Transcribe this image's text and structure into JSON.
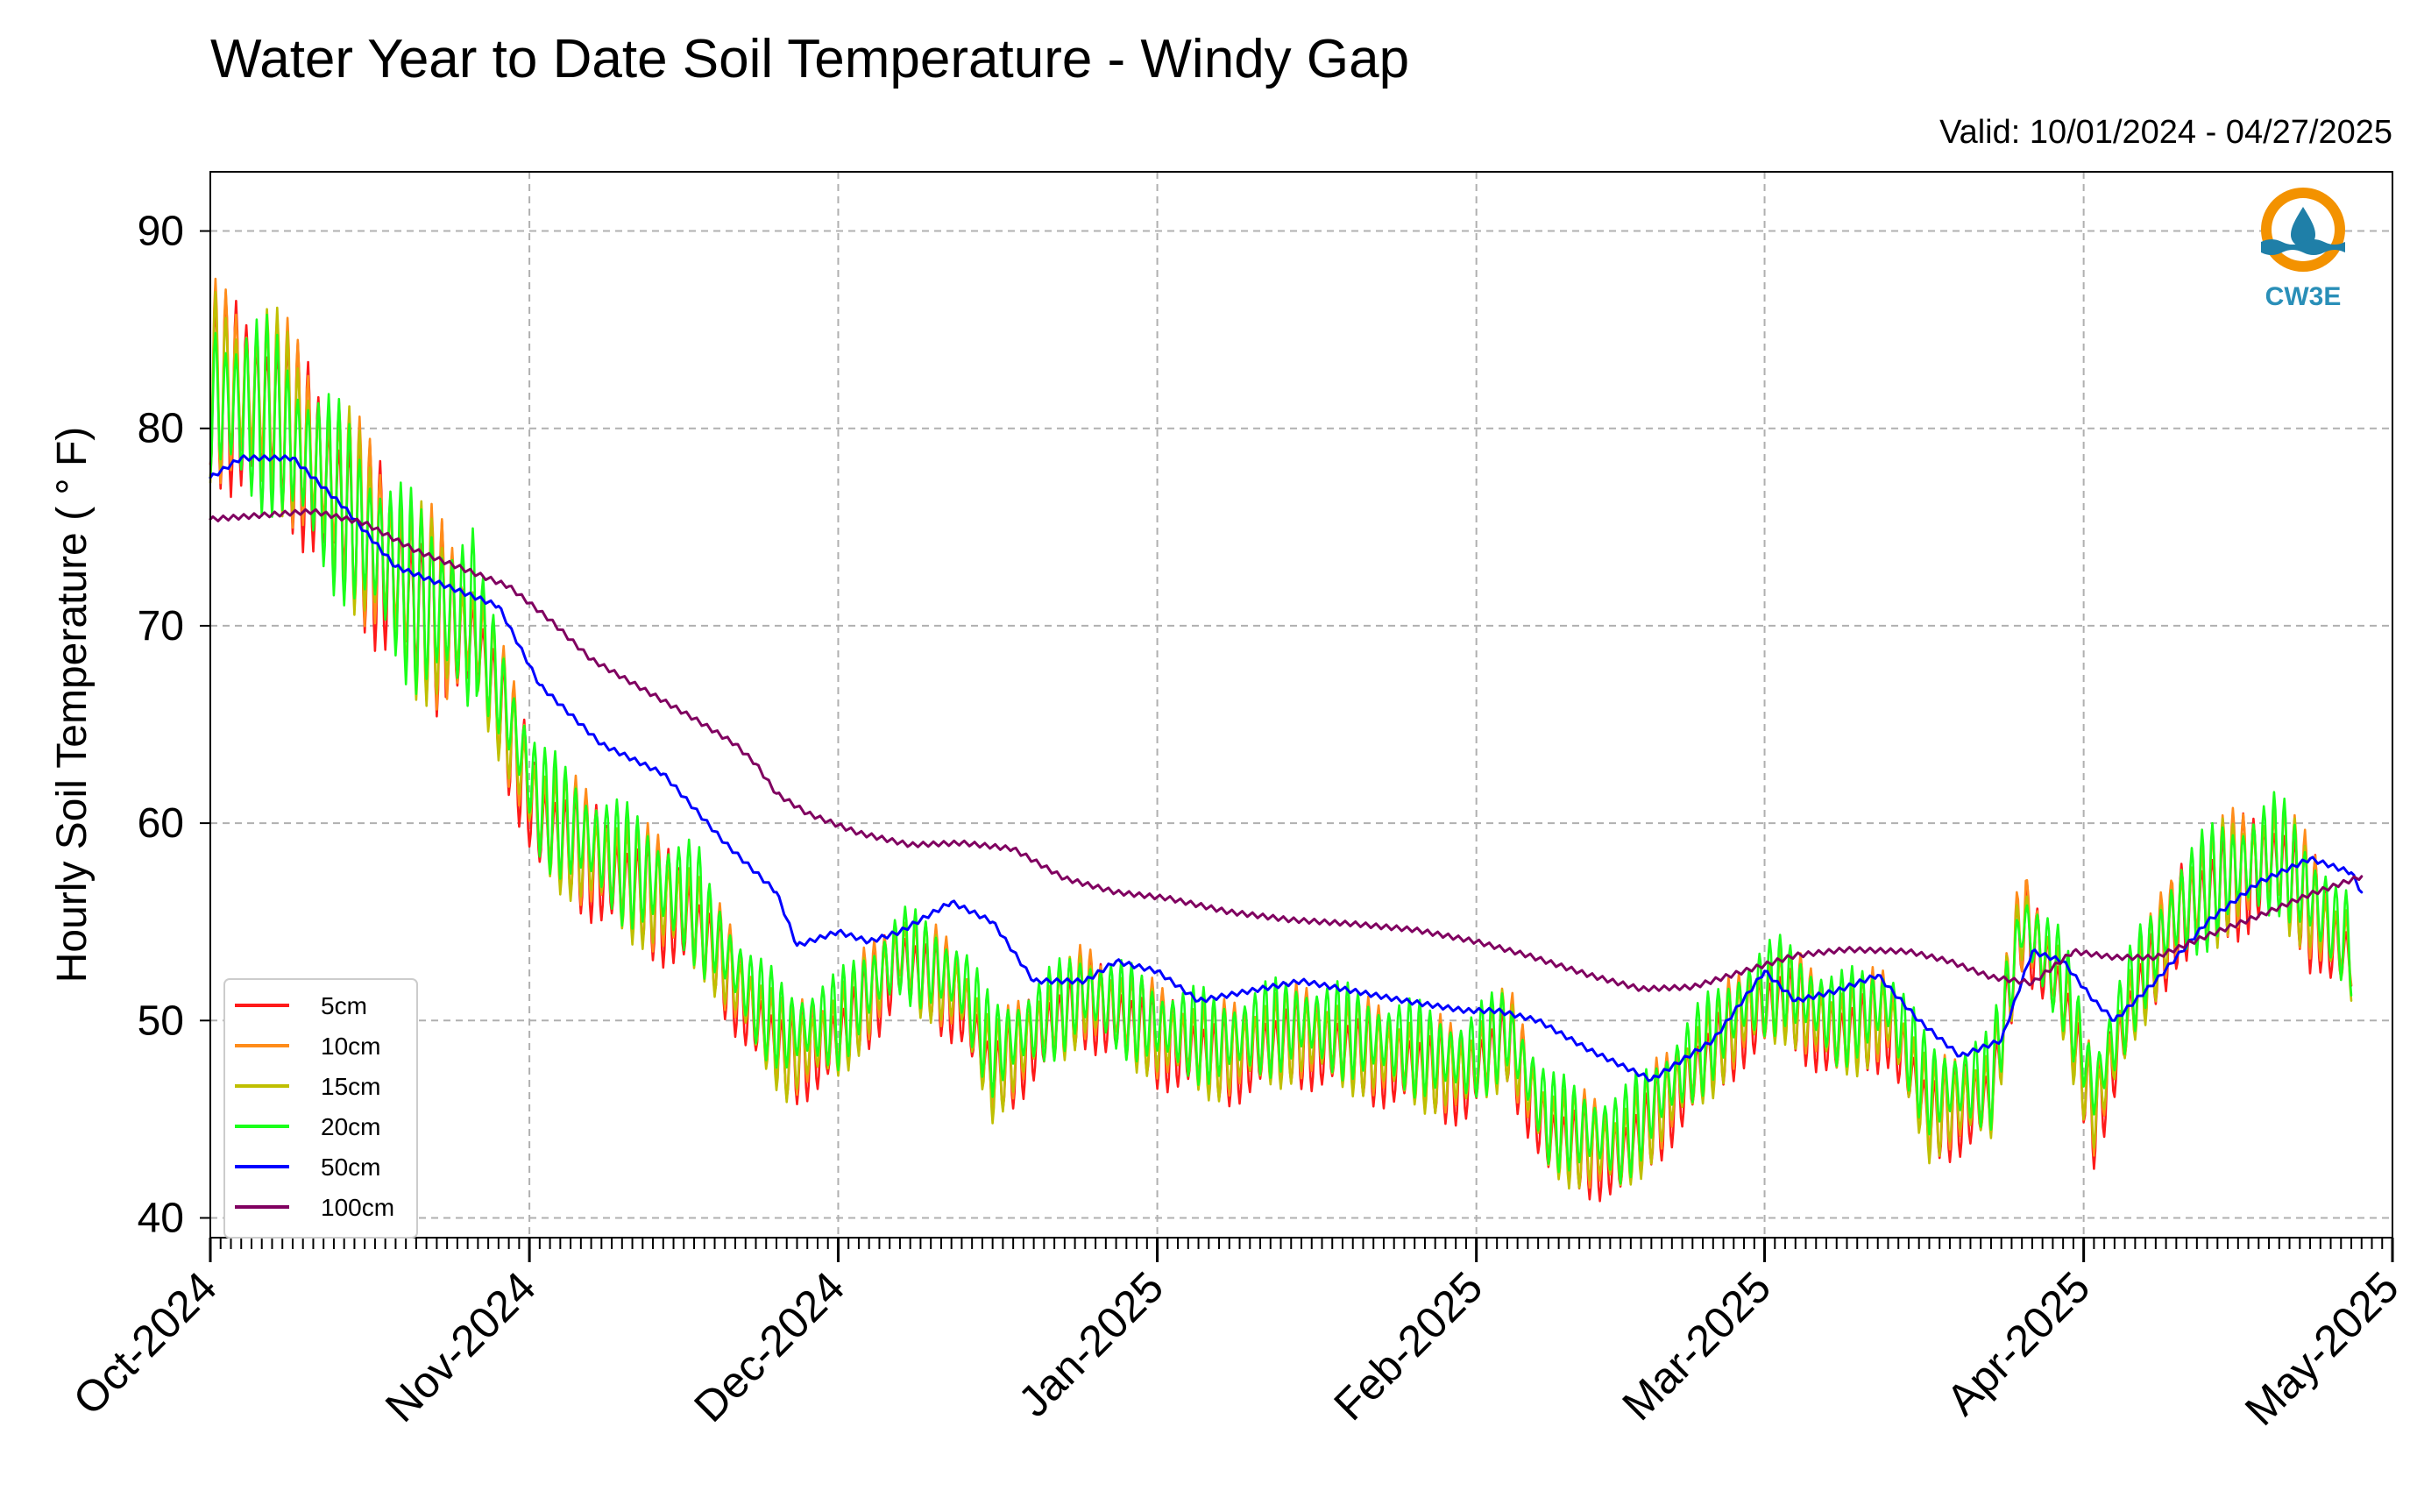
{
  "chart_data": {
    "type": "line",
    "title": "Water Year to Date Soil Temperature - Windy Gap",
    "subtitle": "Valid: 10/01/2024 - 04/27/2025",
    "ylabel": "Hourly Soil Temperature ( ° F)",
    "xlabel": "",
    "ylim": [
      39,
      93
    ],
    "xlim": [
      "2024-10-01",
      "2025-05-01"
    ],
    "yticks": [
      40,
      50,
      60,
      70,
      80,
      90
    ],
    "xticks": [
      {
        "date": "2024-10-01",
        "label": "Oct-2024"
      },
      {
        "date": "2024-11-01",
        "label": "Nov-2024"
      },
      {
        "date": "2024-12-01",
        "label": "Dec-2024"
      },
      {
        "date": "2025-01-01",
        "label": "Jan-2025"
      },
      {
        "date": "2025-02-01",
        "label": "Feb-2025"
      },
      {
        "date": "2025-03-01",
        "label": "Mar-2025"
      },
      {
        "date": "2025-04-01",
        "label": "Apr-2025"
      },
      {
        "date": "2025-05-01",
        "label": "May-2025"
      }
    ],
    "grid": true,
    "legend_position": "lower-left",
    "series": [
      {
        "name": "5cm",
        "color": "#ff1a1a",
        "diurnal": true,
        "points": [
          [
            "2024-10-01",
            82
          ],
          [
            "2024-10-07",
            81
          ],
          [
            "2024-10-14",
            76
          ],
          [
            "2024-10-21",
            71
          ],
          [
            "2024-10-27",
            69
          ],
          [
            "2024-11-02",
            60
          ],
          [
            "2024-11-10",
            57
          ],
          [
            "2024-11-17",
            55
          ],
          [
            "2024-11-23",
            50
          ],
          [
            "2024-11-26",
            48
          ],
          [
            "2024-12-01",
            49
          ],
          [
            "2024-12-07",
            53
          ],
          [
            "2024-12-13",
            51
          ],
          [
            "2024-12-16",
            47
          ],
          [
            "2024-12-20",
            49
          ],
          [
            "2024-12-25",
            51
          ],
          [
            "2025-01-01",
            49
          ],
          [
            "2025-01-07",
            48
          ],
          [
            "2025-01-15",
            49
          ],
          [
            "2025-01-23",
            48
          ],
          [
            "2025-01-31",
            47
          ],
          [
            "2025-02-04",
            49
          ],
          [
            "2025-02-08",
            44
          ],
          [
            "2025-02-15",
            43
          ],
          [
            "2025-02-20",
            46
          ],
          [
            "2025-02-27",
            50
          ],
          [
            "2025-03-03",
            51
          ],
          [
            "2025-03-08",
            49
          ],
          [
            "2025-03-13",
            50
          ],
          [
            "2025-03-17",
            45
          ],
          [
            "2025-03-23",
            46
          ],
          [
            "2025-03-26",
            55
          ],
          [
            "2025-03-30",
            51
          ],
          [
            "2025-04-02",
            45
          ],
          [
            "2025-04-06",
            51
          ],
          [
            "2025-04-10",
            55
          ],
          [
            "2025-04-15",
            57
          ],
          [
            "2025-04-20",
            58
          ],
          [
            "2025-04-25",
            54
          ],
          [
            "2025-04-27",
            53
          ]
        ]
      },
      {
        "name": "10cm",
        "color": "#ff8c1a",
        "diurnal": true,
        "points": [
          [
            "2024-10-01",
            82.5
          ],
          [
            "2024-10-07",
            81.5
          ],
          [
            "2024-10-14",
            76.5
          ],
          [
            "2024-10-21",
            71.5
          ],
          [
            "2024-10-27",
            69.5
          ],
          [
            "2024-11-02",
            60.5
          ],
          [
            "2024-11-10",
            57.5
          ],
          [
            "2024-11-17",
            55.5
          ],
          [
            "2024-11-23",
            50.5
          ],
          [
            "2024-11-26",
            48.5
          ],
          [
            "2024-12-01",
            49.5
          ],
          [
            "2024-12-07",
            53.5
          ],
          [
            "2024-12-13",
            51.5
          ],
          [
            "2024-12-16",
            47.5
          ],
          [
            "2024-12-20",
            49.5
          ],
          [
            "2024-12-25",
            51.5
          ],
          [
            "2025-01-01",
            49.5
          ],
          [
            "2025-01-07",
            48.5
          ],
          [
            "2025-01-15",
            49.5
          ],
          [
            "2025-01-23",
            48.5
          ],
          [
            "2025-01-31",
            47.5
          ],
          [
            "2025-02-04",
            49.5
          ],
          [
            "2025-02-08",
            44.5
          ],
          [
            "2025-02-15",
            43.5
          ],
          [
            "2025-02-20",
            46.5
          ],
          [
            "2025-02-27",
            50.5
          ],
          [
            "2025-03-03",
            51.5
          ],
          [
            "2025-03-08",
            49.5
          ],
          [
            "2025-03-13",
            50.5
          ],
          [
            "2025-03-17",
            45.5
          ],
          [
            "2025-03-23",
            46.5
          ],
          [
            "2025-03-26",
            55.5
          ],
          [
            "2025-03-30",
            51.5
          ],
          [
            "2025-04-02",
            45.5
          ],
          [
            "2025-04-06",
            51.5
          ],
          [
            "2025-04-10",
            55.5
          ],
          [
            "2025-04-15",
            57.5
          ],
          [
            "2025-04-20",
            58.5
          ],
          [
            "2025-04-25",
            54.5
          ],
          [
            "2025-04-27",
            53.5
          ]
        ]
      },
      {
        "name": "15cm",
        "color": "#bfbf00",
        "diurnal": true,
        "points": [
          [
            "2024-10-01",
            82.3
          ],
          [
            "2024-10-07",
            81.3
          ],
          [
            "2024-10-14",
            76.3
          ],
          [
            "2024-10-21",
            71.3
          ],
          [
            "2024-10-27",
            69.3
          ],
          [
            "2024-11-02",
            60.3
          ],
          [
            "2024-11-10",
            57.3
          ],
          [
            "2024-11-17",
            55.3
          ],
          [
            "2024-11-23",
            50.3
          ],
          [
            "2024-11-26",
            48.3
          ],
          [
            "2024-12-01",
            49.3
          ],
          [
            "2024-12-07",
            53.3
          ],
          [
            "2024-12-13",
            51.3
          ],
          [
            "2024-12-16",
            47.3
          ],
          [
            "2024-12-20",
            49.3
          ],
          [
            "2024-12-25",
            51.3
          ],
          [
            "2025-01-01",
            49.3
          ],
          [
            "2025-01-07",
            48.3
          ],
          [
            "2025-01-15",
            49.3
          ],
          [
            "2025-01-23",
            48.3
          ],
          [
            "2025-01-31",
            47.3
          ],
          [
            "2025-02-04",
            49.3
          ],
          [
            "2025-02-08",
            44.3
          ],
          [
            "2025-02-15",
            43.3
          ],
          [
            "2025-02-20",
            46.3
          ],
          [
            "2025-02-27",
            50.3
          ],
          [
            "2025-03-03",
            51.3
          ],
          [
            "2025-03-08",
            49.3
          ],
          [
            "2025-03-13",
            50.3
          ],
          [
            "2025-03-17",
            45.3
          ],
          [
            "2025-03-23",
            46.3
          ],
          [
            "2025-03-26",
            55.3
          ],
          [
            "2025-03-30",
            51.3
          ],
          [
            "2025-04-02",
            45.3
          ],
          [
            "2025-04-06",
            51.3
          ],
          [
            "2025-04-10",
            55.3
          ],
          [
            "2025-04-15",
            57.3
          ],
          [
            "2025-04-20",
            58.3
          ],
          [
            "2025-04-25",
            54.3
          ],
          [
            "2025-04-27",
            53.3
          ]
        ]
      },
      {
        "name": "20cm",
        "color": "#1aff1a",
        "diurnal": true,
        "points": [
          [
            "2024-10-01",
            81.5
          ],
          [
            "2024-10-07",
            80.5
          ],
          [
            "2024-10-14",
            76
          ],
          [
            "2024-10-21",
            71.5
          ],
          [
            "2024-10-27",
            70
          ],
          [
            "2024-11-02",
            61
          ],
          [
            "2024-11-10",
            58
          ],
          [
            "2024-11-17",
            56
          ],
          [
            "2024-11-23",
            51
          ],
          [
            "2024-11-26",
            49.5
          ],
          [
            "2024-12-01",
            50
          ],
          [
            "2024-12-07",
            53.5
          ],
          [
            "2024-12-13",
            52
          ],
          [
            "2024-12-16",
            48.5
          ],
          [
            "2024-12-20",
            49.8
          ],
          [
            "2024-12-25",
            51.5
          ],
          [
            "2025-01-01",
            49.8
          ],
          [
            "2025-01-07",
            49
          ],
          [
            "2025-01-15",
            50
          ],
          [
            "2025-01-23",
            49
          ],
          [
            "2025-01-31",
            48
          ],
          [
            "2025-02-04",
            49.5
          ],
          [
            "2025-02-08",
            45
          ],
          [
            "2025-02-15",
            44
          ],
          [
            "2025-02-20",
            47
          ],
          [
            "2025-02-27",
            51
          ],
          [
            "2025-03-03",
            52
          ],
          [
            "2025-03-08",
            50
          ],
          [
            "2025-03-13",
            51
          ],
          [
            "2025-03-17",
            46.5
          ],
          [
            "2025-03-23",
            47
          ],
          [
            "2025-03-26",
            55
          ],
          [
            "2025-03-30",
            52
          ],
          [
            "2025-04-02",
            46.5
          ],
          [
            "2025-04-06",
            52
          ],
          [
            "2025-04-10",
            55.5
          ],
          [
            "2025-04-15",
            57.5
          ],
          [
            "2025-04-20",
            58.5
          ],
          [
            "2025-04-25",
            55
          ],
          [
            "2025-04-27",
            53.8
          ]
        ]
      },
      {
        "name": "50cm",
        "color": "#0000ff",
        "diurnal": false,
        "points": [
          [
            "2024-10-01",
            77.5
          ],
          [
            "2024-10-04",
            78.5
          ],
          [
            "2024-10-09",
            78.5
          ],
          [
            "2024-10-14",
            76
          ],
          [
            "2024-10-19",
            73
          ],
          [
            "2024-10-24",
            72
          ],
          [
            "2024-10-29",
            71
          ],
          [
            "2024-11-02",
            67
          ],
          [
            "2024-11-08",
            64
          ],
          [
            "2024-11-14",
            62.5
          ],
          [
            "2024-11-20",
            59
          ],
          [
            "2024-11-25",
            56.5
          ],
          [
            "2024-11-27",
            53.8
          ],
          [
            "2024-12-01",
            54.5
          ],
          [
            "2024-12-04",
            54
          ],
          [
            "2024-12-07",
            54.5
          ],
          [
            "2024-12-12",
            56
          ],
          [
            "2024-12-16",
            55
          ],
          [
            "2024-12-20",
            52
          ],
          [
            "2024-12-25",
            52
          ],
          [
            "2024-12-28",
            53
          ],
          [
            "2025-01-01",
            52.5
          ],
          [
            "2025-01-05",
            51
          ],
          [
            "2025-01-10",
            51.5
          ],
          [
            "2025-01-15",
            52
          ],
          [
            "2025-01-20",
            51.5
          ],
          [
            "2025-01-25",
            51
          ],
          [
            "2025-01-31",
            50.5
          ],
          [
            "2025-02-03",
            50.5
          ],
          [
            "2025-02-07",
            50
          ],
          [
            "2025-02-12",
            48.5
          ],
          [
            "2025-02-18",
            47
          ],
          [
            "2025-02-24",
            49
          ],
          [
            "2025-03-01",
            52.5
          ],
          [
            "2025-03-04",
            51
          ],
          [
            "2025-03-08",
            51.5
          ],
          [
            "2025-03-12",
            52.3
          ],
          [
            "2025-03-16",
            50
          ],
          [
            "2025-03-20",
            48.2
          ],
          [
            "2025-03-24",
            49
          ],
          [
            "2025-03-27",
            53.5
          ],
          [
            "2025-03-30",
            53
          ],
          [
            "2025-04-02",
            51
          ],
          [
            "2025-04-04",
            50
          ],
          [
            "2025-04-08",
            52
          ],
          [
            "2025-04-13",
            55
          ],
          [
            "2025-04-18",
            57
          ],
          [
            "2025-04-23",
            58.2
          ],
          [
            "2025-04-27",
            57.5
          ],
          [
            "2025-04-28",
            56.5
          ]
        ]
      },
      {
        "name": "100cm",
        "color": "#800060",
        "diurnal": false,
        "points": [
          [
            "2024-10-01",
            75.4
          ],
          [
            "2024-10-06",
            75.6
          ],
          [
            "2024-10-11",
            75.8
          ],
          [
            "2024-10-16",
            75.2
          ],
          [
            "2024-10-21",
            73.8
          ],
          [
            "2024-10-26",
            72.8
          ],
          [
            "2024-10-30",
            72
          ],
          [
            "2024-11-03",
            70.3
          ],
          [
            "2024-11-07",
            68.3
          ],
          [
            "2024-11-12",
            66.8
          ],
          [
            "2024-11-17",
            65.3
          ],
          [
            "2024-11-21",
            64
          ],
          [
            "2024-11-23",
            63
          ],
          [
            "2024-11-25",
            61.5
          ],
          [
            "2024-11-28",
            60.5
          ],
          [
            "2024-12-03",
            59.5
          ],
          [
            "2024-12-08",
            58.9
          ],
          [
            "2024-12-13",
            59
          ],
          [
            "2024-12-18",
            58.7
          ],
          [
            "2024-12-23",
            57.2
          ],
          [
            "2024-12-28",
            56.5
          ],
          [
            "2025-01-02",
            56.2
          ],
          [
            "2025-01-08",
            55.5
          ],
          [
            "2025-01-14",
            55.1
          ],
          [
            "2025-01-20",
            54.9
          ],
          [
            "2025-01-26",
            54.6
          ],
          [
            "2025-02-01",
            54
          ],
          [
            "2025-02-06",
            53.3
          ],
          [
            "2025-02-12",
            52.3
          ],
          [
            "2025-02-17",
            51.6
          ],
          [
            "2025-02-22",
            51.7
          ],
          [
            "2025-02-27",
            52.5
          ],
          [
            "2025-03-04",
            53.3
          ],
          [
            "2025-03-09",
            53.6
          ],
          [
            "2025-03-15",
            53.5
          ],
          [
            "2025-03-19",
            53
          ],
          [
            "2025-03-23",
            52.2
          ],
          [
            "2025-03-27",
            51.9
          ],
          [
            "2025-03-31",
            53.5
          ],
          [
            "2025-04-04",
            53.2
          ],
          [
            "2025-04-08",
            53.2
          ],
          [
            "2025-04-13",
            54.3
          ],
          [
            "2025-04-18",
            55.3
          ],
          [
            "2025-04-23",
            56.4
          ],
          [
            "2025-04-28",
            57.3
          ]
        ]
      }
    ]
  },
  "logo": {
    "text": "CW3E",
    "colors": {
      "ring": "#f39200",
      "waves": "#1f7fa8"
    }
  }
}
